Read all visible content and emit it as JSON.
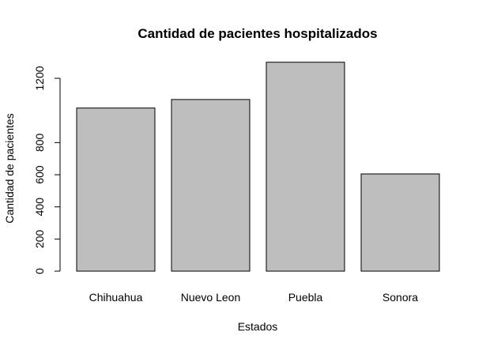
{
  "chart_data": {
    "type": "bar",
    "title": "Cantidad de pacientes hospitalizados",
    "xlabel": "Estados",
    "ylabel": "Cantidad de pacientes",
    "categories": [
      "Chihuahua",
      "Nuevo Leon",
      "Puebla",
      "Sonora"
    ],
    "values": [
      1015,
      1068,
      1300,
      605
    ],
    "yticks": [
      0,
      200,
      400,
      600,
      800,
      1200
    ],
    "ylim": [
      0,
      1300
    ],
    "grid": false,
    "legend": "none",
    "bar_color": "#bebebe",
    "bar_edge_color": "#000000"
  }
}
